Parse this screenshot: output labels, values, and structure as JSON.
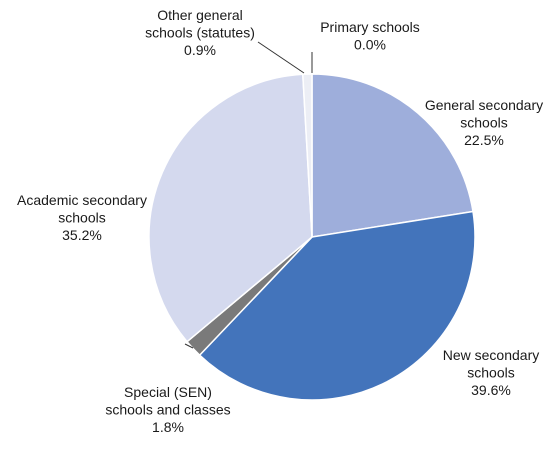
{
  "chart_data": {
    "type": "pie",
    "title": "",
    "slices": [
      {
        "name": "Primary schools",
        "label_lines": [
          "Primary schools"
        ],
        "value": 0.0,
        "value_label": "0.0%",
        "color": "#a8b4dc"
      },
      {
        "name": "General secondary schools",
        "label_lines": [
          "General secondary",
          "schools"
        ],
        "value": 22.5,
        "value_label": "22.5%",
        "color": "#9eaedb"
      },
      {
        "name": "New secondary schools",
        "label_lines": [
          "New secondary",
          "schools"
        ],
        "value": 39.6,
        "value_label": "39.6%",
        "color": "#4374bb"
      },
      {
        "name": "Special (SEN) schools and classes",
        "label_lines": [
          "Special (SEN)",
          "schools and classes"
        ],
        "value": 1.8,
        "value_label": "1.8%",
        "color": "#7a7a7a"
      },
      {
        "name": "Academic secondary schools",
        "label_lines": [
          "Academic secondary",
          "schools"
        ],
        "value": 35.2,
        "value_label": "35.2%",
        "color": "#d4d9ee"
      },
      {
        "name": "Other general schools (statutes)",
        "label_lines": [
          "Other general",
          "schools (statutes)"
        ],
        "value": 0.9,
        "value_label": "0.9%",
        "color": "#eceef5"
      }
    ],
    "legend": "none"
  }
}
